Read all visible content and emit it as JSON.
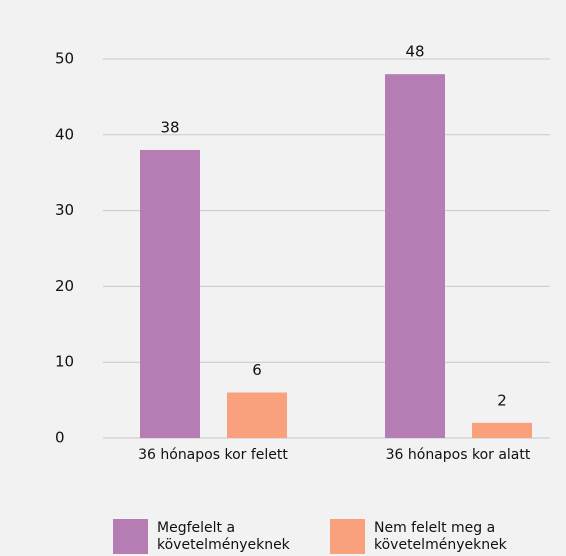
{
  "chart_data": {
    "type": "bar",
    "categories": [
      "36 hónapos kor felett",
      "36 hónapos kor alatt"
    ],
    "series": [
      {
        "name": "Megfelelt a követelményeknek",
        "color": "#b57db3",
        "values": [
          38,
          48
        ]
      },
      {
        "name": "Nem felelt meg a követelményeknek",
        "color": "#f9a07c",
        "values": [
          6,
          2
        ]
      }
    ],
    "ylim": [
      0,
      50
    ],
    "yticks": [
      0,
      10,
      20,
      30,
      40,
      50
    ],
    "grid": true
  }
}
